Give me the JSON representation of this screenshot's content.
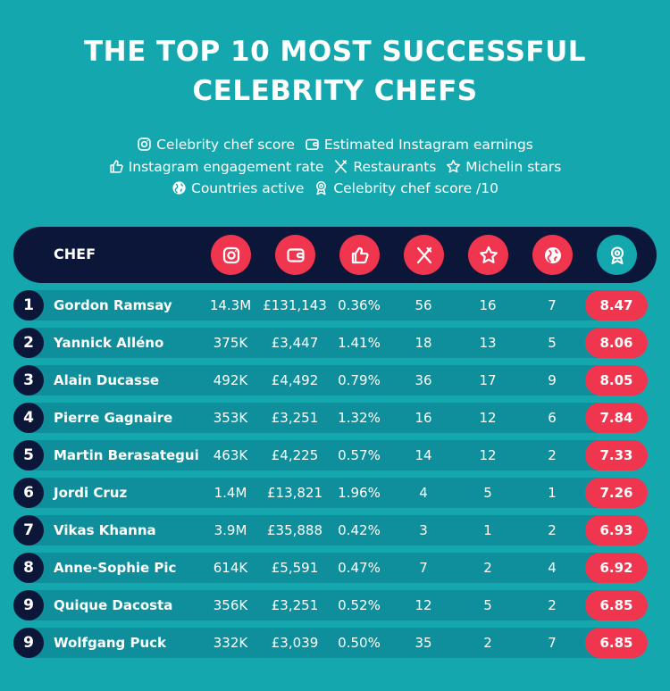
{
  "title_line1": "THE TOP 10 MOST SUCCESSFUL",
  "title_line2": "CELEBRITY CHEFS",
  "legend": [
    {
      "icon": "instagram-icon",
      "label": "Celebrity chef score"
    },
    {
      "icon": "wallet-icon",
      "label": "Estimated Instagram earnings"
    },
    {
      "icon": "thumbs-up-icon",
      "label": "Instagram engagement rate"
    },
    {
      "icon": "fork-knife-icon",
      "label": "Restaurants"
    },
    {
      "icon": "star-icon",
      "label": "Michelin stars"
    },
    {
      "icon": "globe-icon",
      "label": "Countries active"
    },
    {
      "icon": "award-icon",
      "label": "Celebrity chef score /10"
    }
  ],
  "table": {
    "chef_header": "CHEF",
    "columns": [
      "instagram-icon",
      "wallet-icon",
      "thumbs-up-icon",
      "fork-knife-icon",
      "star-icon",
      "globe-icon",
      "award-icon"
    ],
    "rows": [
      {
        "rank": "1",
        "name": "Gordon Ramsay",
        "followers": "14.3M",
        "earnings": "£131,143",
        "engagement": "0.36%",
        "restaurants": "56",
        "stars": "16",
        "countries": "7",
        "score": "8.47"
      },
      {
        "rank": "2",
        "name": "Yannick Alléno",
        "followers": "375K",
        "earnings": "£3,447",
        "engagement": "1.41%",
        "restaurants": "18",
        "stars": "13",
        "countries": "5",
        "score": "8.06"
      },
      {
        "rank": "3",
        "name": "Alain Ducasse",
        "followers": "492K",
        "earnings": "£4,492",
        "engagement": "0.79%",
        "restaurants": "36",
        "stars": "17",
        "countries": "9",
        "score": "8.05"
      },
      {
        "rank": "4",
        "name": "Pierre Gagnaire",
        "followers": "353K",
        "earnings": "£3,251",
        "engagement": "1.32%",
        "restaurants": "16",
        "stars": "12",
        "countries": "6",
        "score": "7.84"
      },
      {
        "rank": "5",
        "name": "Martin Berasategui",
        "followers": "463K",
        "earnings": "£4,225",
        "engagement": "0.57%",
        "restaurants": "14",
        "stars": "12",
        "countries": "2",
        "score": "7.33"
      },
      {
        "rank": "6",
        "name": "Jordi Cruz",
        "followers": "1.4M",
        "earnings": "£13,821",
        "engagement": "1.96%",
        "restaurants": "4",
        "stars": "5",
        "countries": "1",
        "score": "7.26"
      },
      {
        "rank": "7",
        "name": "Vikas Khanna",
        "followers": "3.9M",
        "earnings": "£35,888",
        "engagement": "0.42%",
        "restaurants": "3",
        "stars": "1",
        "countries": "2",
        "score": "6.93"
      },
      {
        "rank": "8",
        "name": "Anne-Sophie Pic",
        "followers": "614K",
        "earnings": "£5,591",
        "engagement": "0.47%",
        "restaurants": "7",
        "stars": "2",
        "countries": "4",
        "score": "6.92"
      },
      {
        "rank": "9",
        "name": "Quique Dacosta",
        "followers": "356K",
        "earnings": "£3,251",
        "engagement": "0.52%",
        "restaurants": "12",
        "stars": "5",
        "countries": "2",
        "score": "6.85"
      },
      {
        "rank": "9",
        "name": "Wolfgang Puck",
        "followers": "332K",
        "earnings": "£3,039",
        "engagement": "0.50%",
        "restaurants": "35",
        "stars": "2",
        "countries": "7",
        "score": "6.85"
      }
    ]
  },
  "colors": {
    "background": "#14a7ae",
    "navy": "#0c1638",
    "accent": "#f0364f",
    "row_band": "#0f8f9b"
  }
}
